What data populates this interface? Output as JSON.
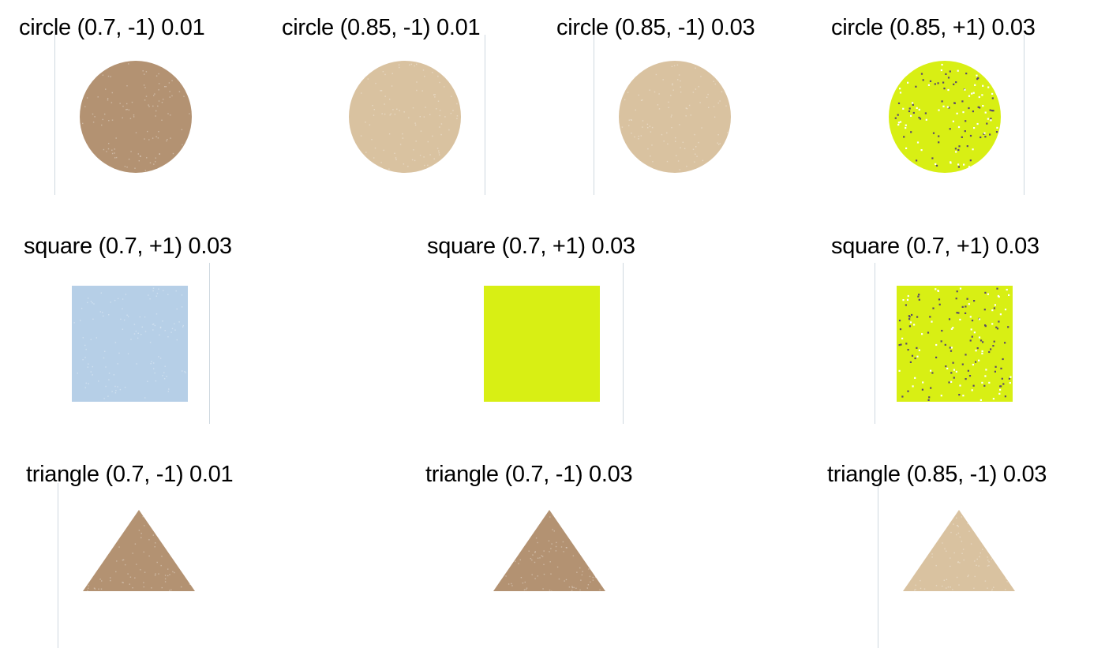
{
  "colors": {
    "brown": "#b39272",
    "tan": "#d9c2a0",
    "lime": "#d8ef14",
    "light_blue": "#b6cfe7",
    "divider": "#cfd8e0",
    "speckle_dark": "#5a4a6a",
    "speckle_light": "#ffffff"
  },
  "rows": [
    {
      "cells": [
        {
          "label": "circle (0.7, -1) 0.01",
          "shape": "circle",
          "color": "brown",
          "speckle": "light"
        },
        {
          "label": "circle (0.85, -1) 0.01",
          "shape": "circle",
          "color": "tan",
          "speckle": "light"
        },
        {
          "label": "circle (0.85, -1) 0.03",
          "shape": "circle",
          "color": "tan",
          "speckle": "light"
        },
        {
          "label": "circle (0.85, +1) 0.03",
          "shape": "circle",
          "color": "lime",
          "speckle": "dark"
        }
      ]
    },
    {
      "cells": [
        {
          "label": "square (0.7, +1) 0.03",
          "shape": "square",
          "color": "light_blue",
          "speckle": "light"
        },
        {
          "label": "square (0.7, +1) 0.03",
          "shape": "square",
          "color": "lime",
          "speckle": "none"
        },
        {
          "label": "square (0.7, +1) 0.03",
          "shape": "square",
          "color": "lime",
          "speckle": "dark"
        }
      ]
    },
    {
      "cells": [
        {
          "label": "triangle (0.7, -1) 0.01",
          "shape": "triangle",
          "color": "brown",
          "speckle": "light"
        },
        {
          "label": "triangle (0.7, -1) 0.03",
          "shape": "triangle",
          "color": "brown",
          "speckle": "light"
        },
        {
          "label": "triangle (0.85, -1) 0.03",
          "shape": "triangle",
          "color": "tan",
          "speckle": "light"
        }
      ]
    }
  ]
}
